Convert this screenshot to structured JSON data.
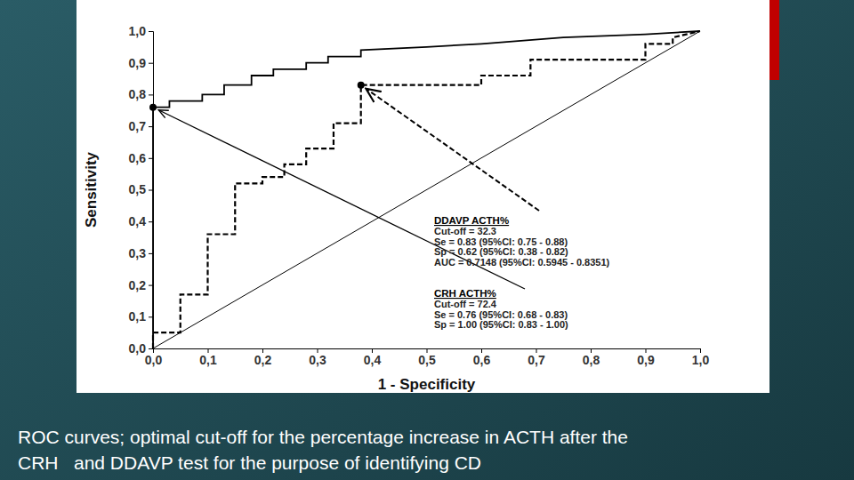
{
  "chart_data": {
    "type": "line",
    "title": [
      "ROC curves; optimal cut-off for the percentage increase in ACTH after the",
      "CRH   and DDAVP test for the purpose of identifying CD"
    ],
    "x_label": "1 - Specificity",
    "y_label": "Sensitivity",
    "xlim": [
      0,
      1
    ],
    "ylim": [
      0,
      1
    ],
    "xticks": [
      {
        "value": 0,
        "label": "0,0"
      },
      {
        "value": 0.1,
        "label": "0,1"
      },
      {
        "value": 0.2,
        "label": "0,2"
      },
      {
        "value": 0.3,
        "label": "0,3"
      },
      {
        "value": 0.4,
        "label": "0,4"
      },
      {
        "value": 0.5,
        "label": "0,5"
      },
      {
        "value": 0.6,
        "label": "0,6"
      },
      {
        "value": 0.7,
        "label": "0,7"
      },
      {
        "value": 0.8,
        "label": "0,8"
      },
      {
        "value": 0.9,
        "label": "0,9"
      },
      {
        "value": 1,
        "label": "1,0"
      }
    ],
    "yticks": [
      {
        "value": 0,
        "label": "0,0"
      },
      {
        "value": 0.1,
        "label": "0,1"
      },
      {
        "value": 0.2,
        "label": "0,2"
      },
      {
        "value": 0.3,
        "label": "0,3"
      },
      {
        "value": 0.4,
        "label": "0,4"
      },
      {
        "value": 0.5,
        "label": "0,5"
      },
      {
        "value": 0.6,
        "label": "0,6"
      },
      {
        "value": 0.7,
        "label": "0,7"
      },
      {
        "value": 0.8,
        "label": "0,8"
      },
      {
        "value": 0.9,
        "label": "0,9"
      },
      {
        "value": 1,
        "label": "1,0"
      }
    ],
    "grid": false,
    "series": [
      {
        "name": "CRH ACTH%",
        "color": "#000000",
        "line_style": "solid",
        "x": [
          0,
          0,
          0.03,
          0.03,
          0.09,
          0.09,
          0.13,
          0.13,
          0.18,
          0.18,
          0.22,
          0.22,
          0.28,
          0.28,
          0.32,
          0.32,
          0.38,
          0.38,
          0.5,
          0.6,
          0.75,
          0.9,
          1
        ],
        "values": [
          0,
          0.76,
          0.76,
          0.78,
          0.78,
          0.8,
          0.8,
          0.83,
          0.83,
          0.86,
          0.86,
          0.88,
          0.88,
          0.9,
          0.9,
          0.92,
          0.92,
          0.94,
          0.95,
          0.96,
          0.98,
          0.99,
          1
        ],
        "optimal_point": {
          "x": 0,
          "y": 0.76
        },
        "annotation": [
          "Cut-off = 72.4",
          "Se = 0.76 (95%CI: 0.68 - 0.83)",
          "Sp = 1.00 (95%CI: 0.83 - 1.00)"
        ]
      },
      {
        "name": "DDAVP ACTH%",
        "color": "#000000",
        "line_style": "dashed",
        "x": [
          0,
          0,
          0.05,
          0.05,
          0.1,
          0.1,
          0.15,
          0.15,
          0.2,
          0.2,
          0.24,
          0.24,
          0.28,
          0.28,
          0.33,
          0.33,
          0.38,
          0.38,
          0.6,
          0.6,
          0.69,
          0.69,
          0.9,
          0.9,
          0.95,
          0.95,
          1
        ],
        "values": [
          0,
          0.05,
          0.05,
          0.17,
          0.17,
          0.36,
          0.36,
          0.52,
          0.52,
          0.54,
          0.54,
          0.58,
          0.58,
          0.63,
          0.63,
          0.71,
          0.71,
          0.83,
          0.83,
          0.86,
          0.86,
          0.91,
          0.91,
          0.96,
          0.96,
          0.98,
          1
        ],
        "optimal_point": {
          "x": 0.38,
          "y": 0.83
        },
        "annotation": [
          "Cut-off = 32.3",
          "Se = 0.83 (95%CI: 0.75 - 0.88)",
          "Sp = 0.62 (95%CI: 0.38 - 0.82)",
          "AUC = 0.7148 (95%CI: 0.5945 - 0.8351)"
        ]
      }
    ]
  }
}
